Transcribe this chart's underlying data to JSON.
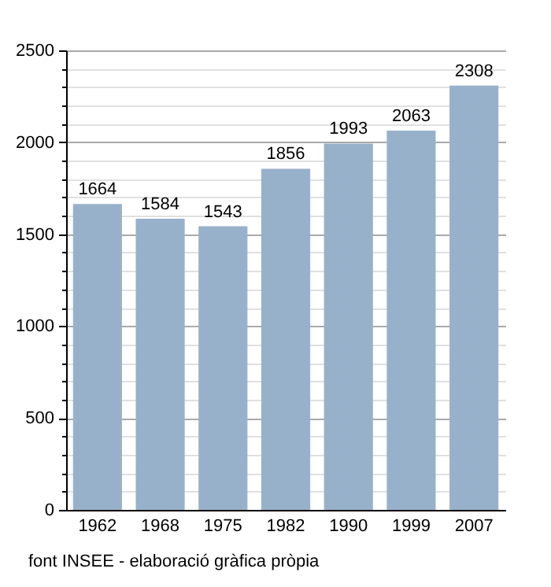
{
  "chart_data": {
    "type": "bar",
    "categories": [
      "1962",
      "1968",
      "1975",
      "1982",
      "1990",
      "1999",
      "2007"
    ],
    "values": [
      1664,
      1584,
      1543,
      1856,
      1993,
      2063,
      2308
    ],
    "color": "#98b1cb",
    "data_labels": true,
    "grid": "y",
    "ylim": [
      0,
      2500
    ],
    "yticks": [
      0,
      {
        "value": 100,
        "label": null
      },
      {
        "value": 200,
        "label": null
      },
      {
        "value": 300,
        "label": null
      },
      {
        "value": 400,
        "label": null
      },
      500,
      {
        "value": 600,
        "label": null
      },
      {
        "value": 700,
        "label": null
      },
      {
        "value": 800,
        "label": null
      },
      {
        "value": 900,
        "label": null
      },
      1000,
      {
        "value": 1100,
        "label": null
      },
      {
        "value": 1200,
        "label": null
      },
      {
        "value": 1300,
        "label": null
      },
      {
        "value": 1400,
        "label": null
      },
      1500,
      {
        "value": 1600,
        "label": null
      },
      {
        "value": 1700,
        "label": null
      },
      {
        "value": 1800,
        "label": null
      },
      {
        "value": 1900,
        "label": null
      },
      2000,
      {
        "value": 2100,
        "label": null
      },
      {
        "value": 2200,
        "label": null
      },
      {
        "value": 2300,
        "label": null
      },
      {
        "value": 2400,
        "label": null
      },
      2500
    ],
    "annotations": [
      "font INSEE - elaboració gràfica pròpia"
    ]
  }
}
